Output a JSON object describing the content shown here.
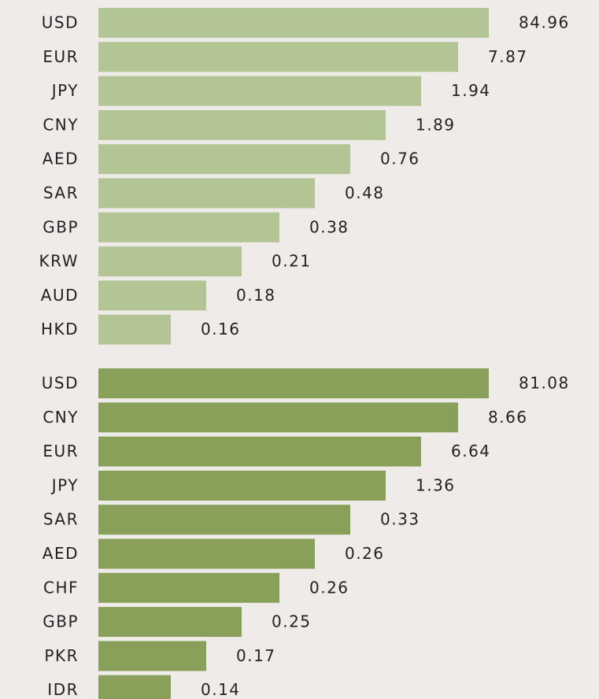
{
  "lists": [
    {
      "color": "#b3c495",
      "items": [
        {
          "code": "USD",
          "value": 84.96
        },
        {
          "code": "EUR",
          "value": 7.87
        },
        {
          "code": "JPY",
          "value": 1.94
        },
        {
          "code": "CNY",
          "value": 1.89
        },
        {
          "code": "AED",
          "value": 0.76
        },
        {
          "code": "SAR",
          "value": 0.48
        },
        {
          "code": "GBP",
          "value": 0.38
        },
        {
          "code": "KRW",
          "value": 0.21
        },
        {
          "code": "AUD",
          "value": 0.18
        },
        {
          "code": "HKD",
          "value": 0.16
        }
      ]
    },
    {
      "color": "#88a05a",
      "items": [
        {
          "code": "USD",
          "value": 81.08
        },
        {
          "code": "CNY",
          "value": 8.66
        },
        {
          "code": "EUR",
          "value": 6.64
        },
        {
          "code": "JPY",
          "value": 1.36
        },
        {
          "code": "SAR",
          "value": 0.33
        },
        {
          "code": "AED",
          "value": 0.26
        },
        {
          "code": "CHF",
          "value": 0.26
        },
        {
          "code": "GBP",
          "value": 0.25
        },
        {
          "code": "PKR",
          "value": 0.17
        },
        {
          "code": "IDR",
          "value": 0.14
        }
      ]
    }
  ]
}
